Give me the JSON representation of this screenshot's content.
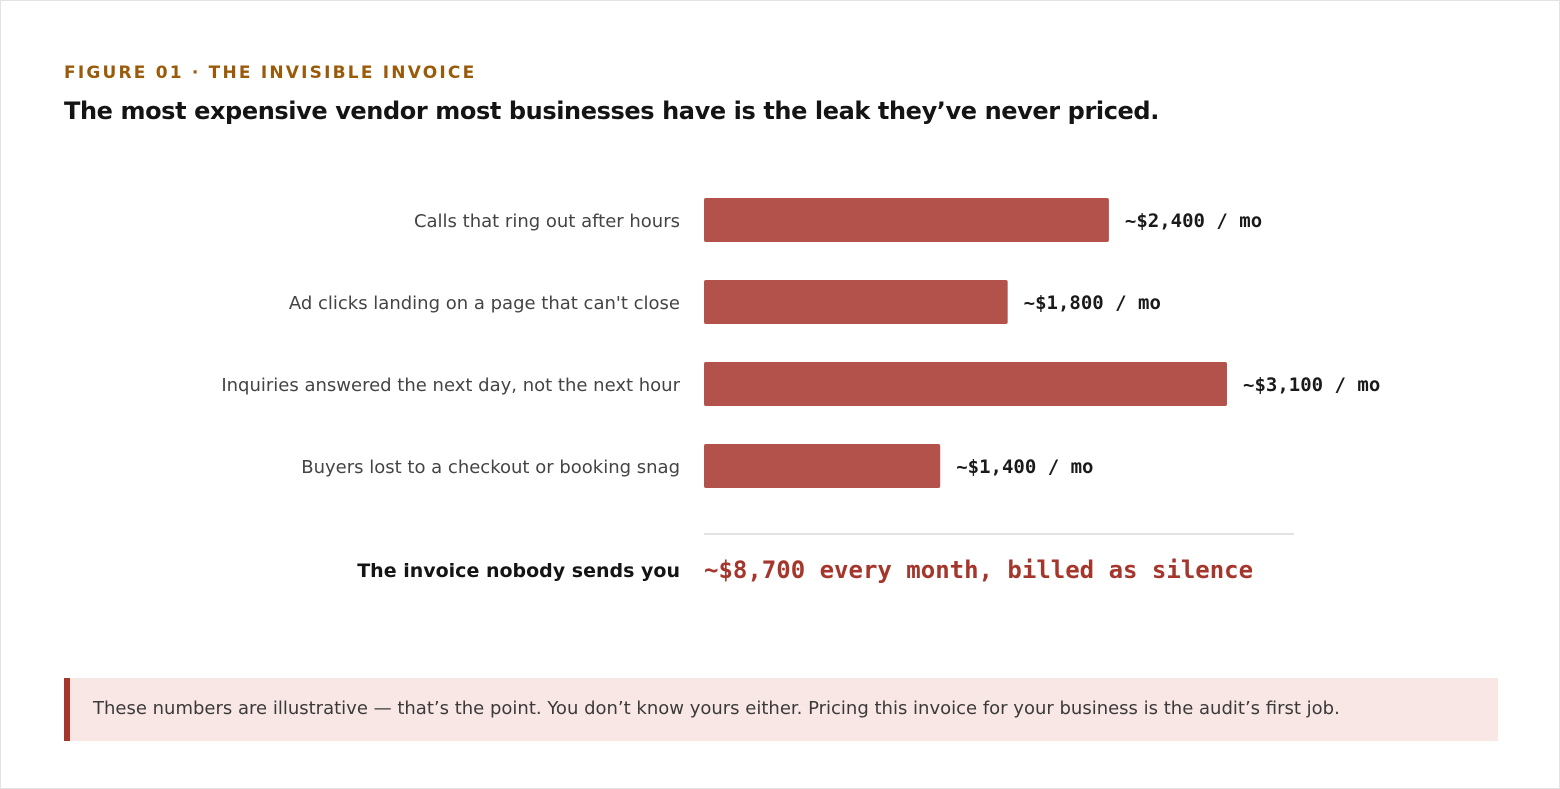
{
  "figure": {
    "eyebrow": "FIGURE 01 · THE INVISIBLE INVOICE",
    "headline": "The most expensive vendor most businesses have is the leak they’ve never priced."
  },
  "chart_data": {
    "type": "bar",
    "orientation": "horizontal",
    "categories": [
      "Calls that ring out after hours",
      "Ad clicks landing on a page that can't close",
      "Inquiries answered the next day, not the next hour",
      "Buyers lost to a checkout or booking snag"
    ],
    "values": [
      2400,
      1800,
      3100,
      1400
    ],
    "value_labels": [
      "~$2,400 / mo",
      "~$1,800 / mo",
      "~$3,100 / mo",
      "~$1,400 / mo"
    ],
    "total": {
      "label": "The invoice nobody sends you",
      "value": 8700,
      "value_label": "~$8,700 every month, billed as silence"
    },
    "grid": false,
    "bar_color": "#b3514b",
    "total_color": "#a4362c"
  },
  "note": {
    "text": "These numbers are illustrative — that’s the point. You don’t know yours either. Pricing this invoice for your business is the audit’s first job."
  }
}
